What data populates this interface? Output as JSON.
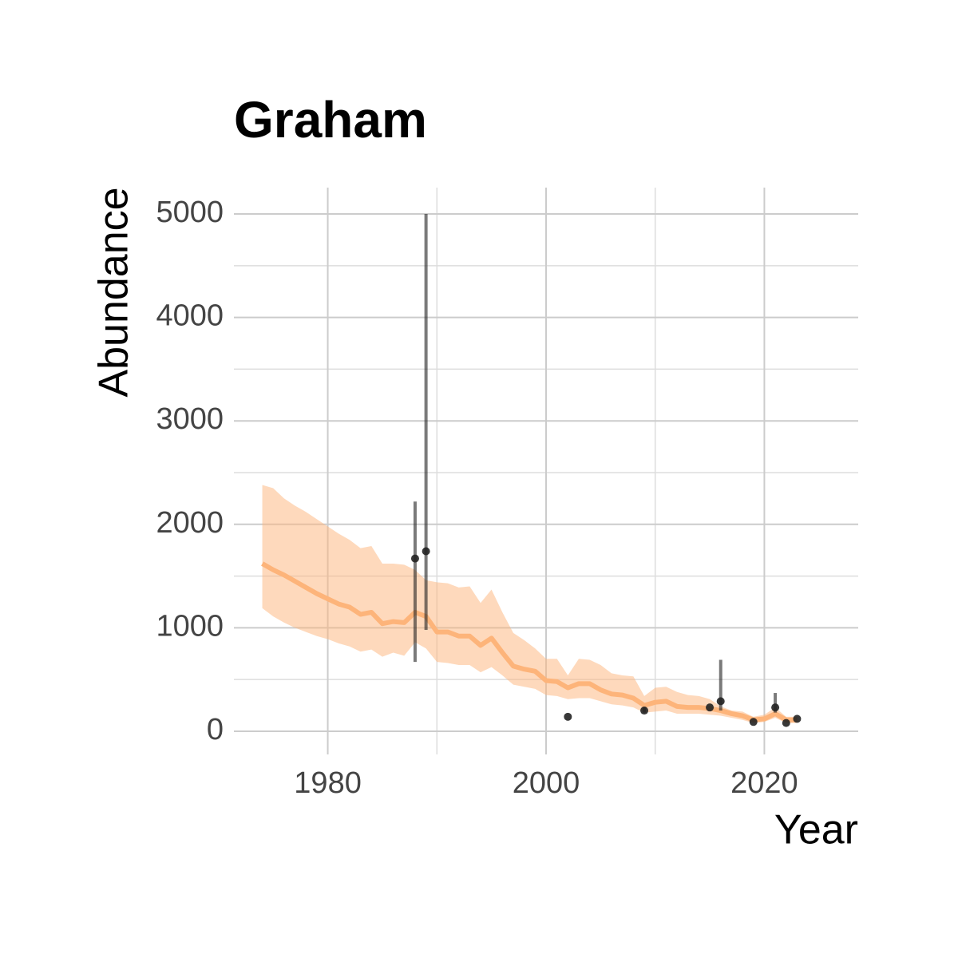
{
  "chart_data": {
    "type": "line",
    "title": "Graham",
    "x_label": "Year",
    "y_label": "Abundance",
    "x": [
      1974,
      1975,
      1976,
      1977,
      1978,
      1979,
      1980,
      1981,
      1982,
      1983,
      1984,
      1985,
      1986,
      1987,
      1988,
      1989,
      1990,
      1991,
      1992,
      1993,
      1994,
      1995,
      1996,
      1997,
      1998,
      1999,
      2000,
      2001,
      2002,
      2003,
      2004,
      2005,
      2006,
      2007,
      2008,
      2009,
      2010,
      2011,
      2012,
      2013,
      2014,
      2015,
      2016,
      2017,
      2018,
      2019,
      2020,
      2021,
      2022,
      2023
    ],
    "values": [
      1620,
      1560,
      1510,
      1450,
      1390,
      1330,
      1280,
      1230,
      1200,
      1130,
      1150,
      1040,
      1060,
      1050,
      1150,
      1110,
      960,
      960,
      920,
      920,
      830,
      900,
      760,
      630,
      600,
      580,
      490,
      480,
      420,
      460,
      460,
      400,
      360,
      350,
      320,
      250,
      280,
      290,
      240,
      230,
      230,
      220,
      200,
      170,
      150,
      110,
      120,
      170,
      110,
      110
    ],
    "upper": [
      2380,
      2350,
      2250,
      2180,
      2120,
      2050,
      1980,
      1910,
      1850,
      1770,
      1790,
      1620,
      1620,
      1610,
      1560,
      1460,
      1440,
      1430,
      1390,
      1400,
      1240,
      1370,
      1150,
      950,
      880,
      800,
      700,
      700,
      540,
      700,
      690,
      640,
      560,
      540,
      530,
      340,
      420,
      430,
      380,
      350,
      340,
      310,
      240,
      200,
      190,
      140,
      160,
      230,
      140,
      140
    ],
    "lower": [
      1190,
      1110,
      1050,
      1000,
      960,
      920,
      890,
      850,
      820,
      770,
      790,
      720,
      760,
      730,
      860,
      800,
      670,
      660,
      640,
      640,
      570,
      620,
      540,
      450,
      430,
      410,
      350,
      340,
      310,
      320,
      320,
      290,
      260,
      250,
      230,
      180,
      190,
      200,
      170,
      170,
      170,
      160,
      150,
      130,
      110,
      80,
      90,
      130,
      80,
      80
    ],
    "color": "#fdb47a",
    "points": {
      "x": [
        1988,
        1989,
        2002,
        2009,
        2015,
        2016,
        2019,
        2021,
        2022,
        2023
      ],
      "values": [
        1670,
        1740,
        140,
        200,
        230,
        290,
        90,
        230,
        80,
        120
      ],
      "lower": [
        670,
        980,
        null,
        180,
        null,
        200,
        null,
        180,
        null,
        null
      ],
      "upper": [
        2220,
        5000,
        null,
        230,
        null,
        690,
        null,
        370,
        null,
        null
      ],
      "color": "#222222"
    },
    "xlim": [
      1971.4,
      2028.6
    ],
    "ylim": [
      -224,
      5255
    ],
    "xticks": [
      1980,
      2000,
      2020
    ],
    "yticks": [
      0,
      1000,
      2000,
      3000,
      4000,
      5000
    ],
    "grid": true
  }
}
